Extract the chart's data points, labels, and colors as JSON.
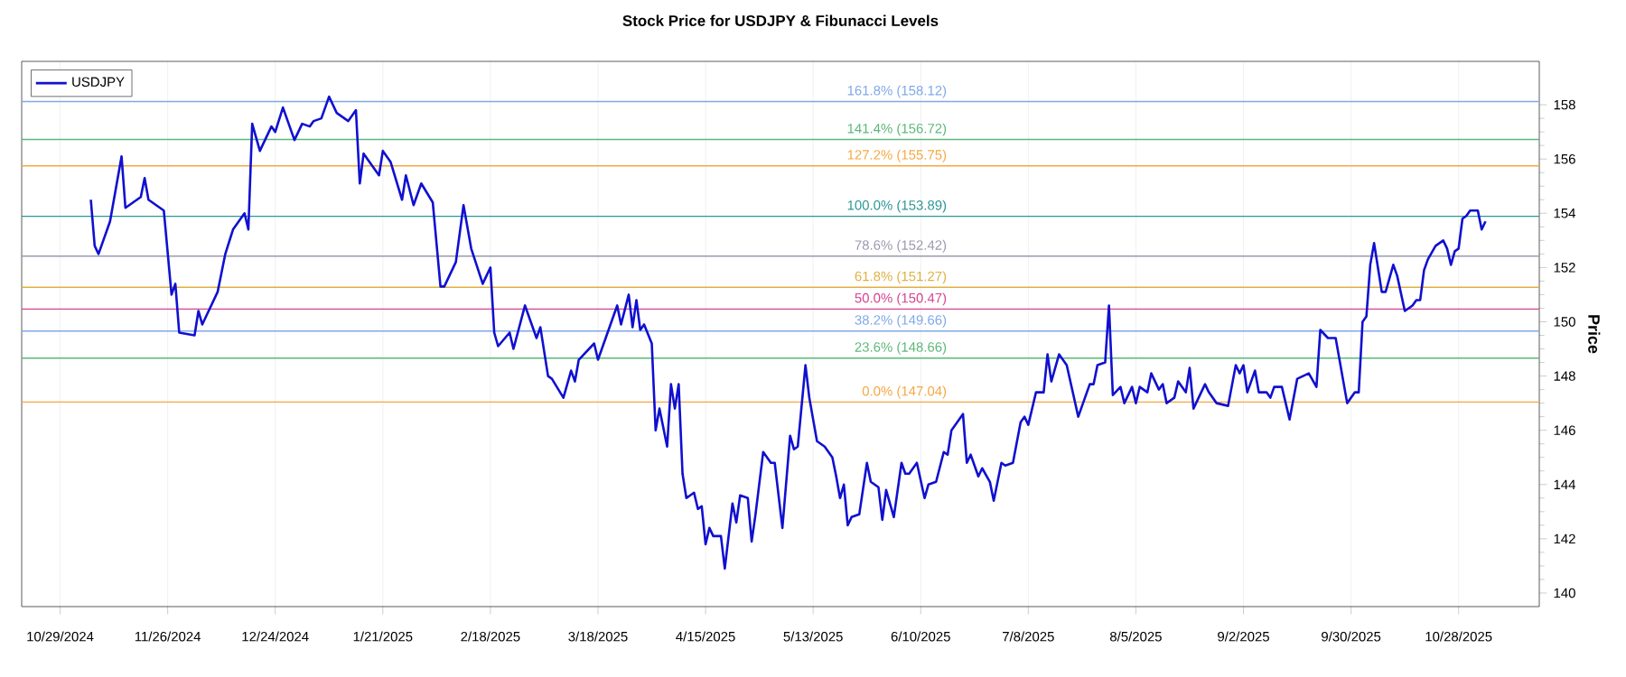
{
  "chart_data": {
    "type": "line",
    "title": "Stock Price for USDJPY & Fibunacci Levels",
    "ylabel": "Price",
    "xlim": [
      "2024-10-19",
      "2025-11-18"
    ],
    "ylim": [
      139.5,
      159.6
    ],
    "xticks": [
      {
        "value": "2024-10-29",
        "label": "10/29/2024"
      },
      {
        "value": "2024-11-26",
        "label": "11/26/2024"
      },
      {
        "value": "2024-12-24",
        "label": "12/24/2024"
      },
      {
        "value": "2025-01-21",
        "label": "1/21/2025"
      },
      {
        "value": "2025-02-18",
        "label": "2/18/2025"
      },
      {
        "value": "2025-03-18",
        "label": "3/18/2025"
      },
      {
        "value": "2025-04-15",
        "label": "4/15/2025"
      },
      {
        "value": "2025-05-13",
        "label": "5/13/2025"
      },
      {
        "value": "2025-06-10",
        "label": "6/10/2025"
      },
      {
        "value": "2025-07-08",
        "label": "7/8/2025"
      },
      {
        "value": "2025-08-05",
        "label": "8/5/2025"
      },
      {
        "value": "2025-09-02",
        "label": "9/2/2025"
      },
      {
        "value": "2025-09-30",
        "label": "9/30/2025"
      },
      {
        "value": "2025-10-28",
        "label": "10/28/2025"
      }
    ],
    "yticks": [
      140,
      142,
      144,
      146,
      148,
      150,
      152,
      154,
      156,
      158
    ],
    "grid": "x",
    "legend": "top left",
    "marker": "none",
    "line_style": "solid",
    "series": [
      {
        "name": "USDJPY",
        "color": "#1010d0",
        "x": [
          "2024-11-06",
          "2024-11-07",
          "2024-11-08",
          "2024-11-11",
          "2024-11-14",
          "2024-11-15",
          "2024-11-19",
          "2024-11-20",
          "2024-11-21",
          "2024-11-25",
          "2024-11-27",
          "2024-11-28",
          "2024-11-29",
          "2024-12-03",
          "2024-12-04",
          "2024-12-05",
          "2024-12-09",
          "2024-12-11",
          "2024-12-13",
          "2024-12-16",
          "2024-12-17",
          "2024-12-18",
          "2024-12-20",
          "2024-12-23",
          "2024-12-24",
          "2024-12-26",
          "2024-12-29",
          "2024-12-31",
          "2025-01-02",
          "2025-01-03",
          "2025-01-05",
          "2025-01-07",
          "2025-01-09",
          "2025-01-12",
          "2025-01-14",
          "2025-01-15",
          "2025-01-16",
          "2025-01-20",
          "2025-01-21",
          "2025-01-23",
          "2025-01-26",
          "2025-01-27",
          "2025-01-29",
          "2025-01-31",
          "2025-02-03",
          "2025-02-05",
          "2025-02-06",
          "2025-02-09",
          "2025-02-11",
          "2025-02-13",
          "2025-02-16",
          "2025-02-18",
          "2025-02-19",
          "2025-02-20",
          "2025-02-23",
          "2025-02-24",
          "2025-02-27",
          "2025-03-02",
          "2025-03-03",
          "2025-03-05",
          "2025-03-06",
          "2025-03-09",
          "2025-03-11",
          "2025-03-12",
          "2025-03-13",
          "2025-03-17",
          "2025-03-18",
          "2025-03-20",
          "2025-03-23",
          "2025-03-24",
          "2025-03-26",
          "2025-03-27",
          "2025-03-28",
          "2025-03-29",
          "2025-03-30",
          "2025-04-01",
          "2025-04-02",
          "2025-04-03",
          "2025-04-05",
          "2025-04-06",
          "2025-04-07",
          "2025-04-08",
          "2025-04-09",
          "2025-04-10",
          "2025-04-12",
          "2025-04-13",
          "2025-04-14",
          "2025-04-15",
          "2025-04-16",
          "2025-04-17",
          "2025-04-19",
          "2025-04-20",
          "2025-04-22",
          "2025-04-23",
          "2025-04-24",
          "2025-04-26",
          "2025-04-27",
          "2025-04-28",
          "2025-04-30",
          "2025-05-02",
          "2025-05-03",
          "2025-05-05",
          "2025-05-07",
          "2025-05-08",
          "2025-05-09",
          "2025-05-11",
          "2025-05-12",
          "2025-05-14",
          "2025-05-16",
          "2025-05-18",
          "2025-05-19",
          "2025-05-20",
          "2025-05-21",
          "2025-05-22",
          "2025-05-23",
          "2025-05-25",
          "2025-05-27",
          "2025-05-28",
          "2025-05-30",
          "2025-05-31",
          "2025-06-01",
          "2025-06-03",
          "2025-06-05",
          "2025-06-06",
          "2025-06-07",
          "2025-06-09",
          "2025-06-11",
          "2025-06-12",
          "2025-06-14",
          "2025-06-16",
          "2025-06-17",
          "2025-06-18",
          "2025-06-21",
          "2025-06-22",
          "2025-06-23",
          "2025-06-25",
          "2025-06-26",
          "2025-06-28",
          "2025-06-29",
          "2025-07-01",
          "2025-07-02",
          "2025-07-04",
          "2025-07-06",
          "2025-07-07",
          "2025-07-08",
          "2025-07-10",
          "2025-07-12",
          "2025-07-13",
          "2025-07-14",
          "2025-07-16",
          "2025-07-18",
          "2025-07-21",
          "2025-07-24",
          "2025-07-25",
          "2025-07-26",
          "2025-07-28",
          "2025-07-29",
          "2025-07-30",
          "2025-08-01",
          "2025-08-02",
          "2025-08-04",
          "2025-08-05",
          "2025-08-06",
          "2025-08-08",
          "2025-08-09",
          "2025-08-11",
          "2025-08-12",
          "2025-08-13",
          "2025-08-15",
          "2025-08-16",
          "2025-08-18",
          "2025-08-19",
          "2025-08-20",
          "2025-08-23",
          "2025-08-24",
          "2025-08-26",
          "2025-08-29",
          "2025-08-31",
          "2025-09-01",
          "2025-09-02",
          "2025-09-03",
          "2025-09-05",
          "2025-09-06",
          "2025-09-08",
          "2025-09-09",
          "2025-09-10",
          "2025-09-12",
          "2025-09-14",
          "2025-09-16",
          "2025-09-19",
          "2025-09-21",
          "2025-09-22",
          "2025-09-24",
          "2025-09-26",
          "2025-09-29",
          "2025-10-01",
          "2025-10-02",
          "2025-10-03",
          "2025-10-04",
          "2025-10-05",
          "2025-10-06",
          "2025-10-08",
          "2025-10-09",
          "2025-10-11",
          "2025-10-12",
          "2025-10-14",
          "2025-10-16",
          "2025-10-17",
          "2025-10-18",
          "2025-10-19",
          "2025-10-20",
          "2025-10-22",
          "2025-10-24",
          "2025-10-25",
          "2025-10-26",
          "2025-10-27",
          "2025-10-28",
          "2025-10-29",
          "2025-10-30",
          "2025-10-31",
          "2025-11-02",
          "2025-11-03",
          "2025-11-04"
        ],
        "values": [
          154.5,
          152.8,
          152.5,
          153.7,
          156.1,
          154.2,
          154.6,
          155.3,
          154.5,
          154.1,
          151.0,
          151.4,
          149.6,
          149.5,
          150.4,
          149.9,
          151.1,
          152.5,
          153.4,
          154.0,
          153.4,
          157.3,
          156.3,
          157.2,
          157.0,
          157.9,
          156.7,
          157.3,
          157.2,
          157.4,
          157.5,
          158.3,
          157.7,
          157.4,
          157.8,
          155.1,
          156.2,
          155.4,
          156.3,
          155.9,
          154.5,
          155.4,
          154.3,
          155.1,
          154.4,
          151.3,
          151.3,
          152.2,
          154.3,
          152.7,
          151.4,
          152.0,
          149.6,
          149.1,
          149.6,
          149.0,
          150.6,
          149.4,
          149.8,
          148.0,
          147.9,
          147.2,
          148.2,
          147.8,
          148.6,
          149.2,
          148.6,
          149.4,
          150.6,
          149.9,
          151.0,
          149.8,
          150.8,
          149.7,
          149.9,
          149.2,
          146.0,
          146.8,
          145.4,
          147.7,
          146.8,
          147.7,
          144.4,
          143.5,
          143.7,
          143.1,
          143.2,
          141.8,
          142.4,
          142.1,
          142.1,
          140.9,
          143.3,
          142.6,
          143.6,
          143.5,
          141.9,
          142.9,
          145.2,
          144.8,
          144.8,
          142.4,
          145.8,
          145.3,
          145.4,
          148.4,
          147.2,
          145.6,
          145.4,
          145.0,
          144.3,
          143.5,
          144.0,
          142.5,
          142.8,
          142.9,
          144.8,
          144.1,
          143.9,
          142.7,
          143.8,
          142.8,
          144.8,
          144.4,
          144.4,
          144.8,
          143.5,
          144.0,
          144.1,
          145.2,
          145.1,
          146.0,
          146.6,
          144.8,
          145.1,
          144.3,
          144.6,
          144.1,
          143.4,
          144.8,
          144.7,
          144.8,
          146.3,
          146.5,
          146.2,
          147.4,
          147.4,
          148.8,
          147.8,
          148.8,
          148.4,
          146.5,
          147.7,
          147.7,
          148.4,
          148.5,
          150.6,
          147.3,
          147.6,
          147.0,
          147.6,
          147.0,
          147.6,
          147.4,
          148.1,
          147.5,
          147.7,
          147.0,
          147.2,
          147.8,
          147.4,
          148.3,
          146.8,
          147.7,
          147.4,
          147.0,
          146.9,
          148.4,
          148.1,
          148.4,
          147.4,
          148.2,
          147.4,
          147.4,
          147.2,
          147.6,
          147.6,
          146.4,
          147.9,
          148.1,
          147.6,
          149.7,
          149.4,
          149.4,
          147.0,
          147.4,
          147.4,
          150.0,
          150.2,
          152.1,
          152.9,
          151.1,
          151.1,
          152.1,
          151.7,
          150.4,
          150.6,
          150.8,
          150.8,
          151.9,
          152.3,
          152.8,
          153.0,
          152.7,
          152.1,
          152.6,
          152.7,
          153.8,
          153.9,
          154.1,
          154.1,
          153.4,
          153.7
        ]
      }
    ],
    "ref_lines": [
      {
        "axis": "y",
        "value": 147.04,
        "label": "0.0% (147.04)",
        "color": "#f5a742"
      },
      {
        "axis": "y",
        "value": 148.66,
        "label": "23.6% (148.66)",
        "color": "#5cb87a"
      },
      {
        "axis": "y",
        "value": 149.66,
        "label": "38.2% (149.66)",
        "color": "#7fa8e8"
      },
      {
        "axis": "y",
        "value": 150.47,
        "label": "50.0% (150.47)",
        "color": "#d6448f"
      },
      {
        "axis": "y",
        "value": 151.27,
        "label": "61.8% (151.27)",
        "color": "#e0b040"
      },
      {
        "axis": "y",
        "value": 152.42,
        "label": "78.6% (152.42)",
        "color": "#9a9aae"
      },
      {
        "axis": "y",
        "value": 153.89,
        "label": "100.0% (153.89)",
        "color": "#2e9696"
      },
      {
        "axis": "y",
        "value": 155.75,
        "label": "127.2% (155.75)",
        "color": "#f5a742"
      },
      {
        "axis": "y",
        "value": 156.72,
        "label": "141.4% (156.72)",
        "color": "#5cb87a"
      },
      {
        "axis": "y",
        "value": 158.12,
        "label": "161.8% (158.12)",
        "color": "#7fa8e8"
      }
    ]
  }
}
